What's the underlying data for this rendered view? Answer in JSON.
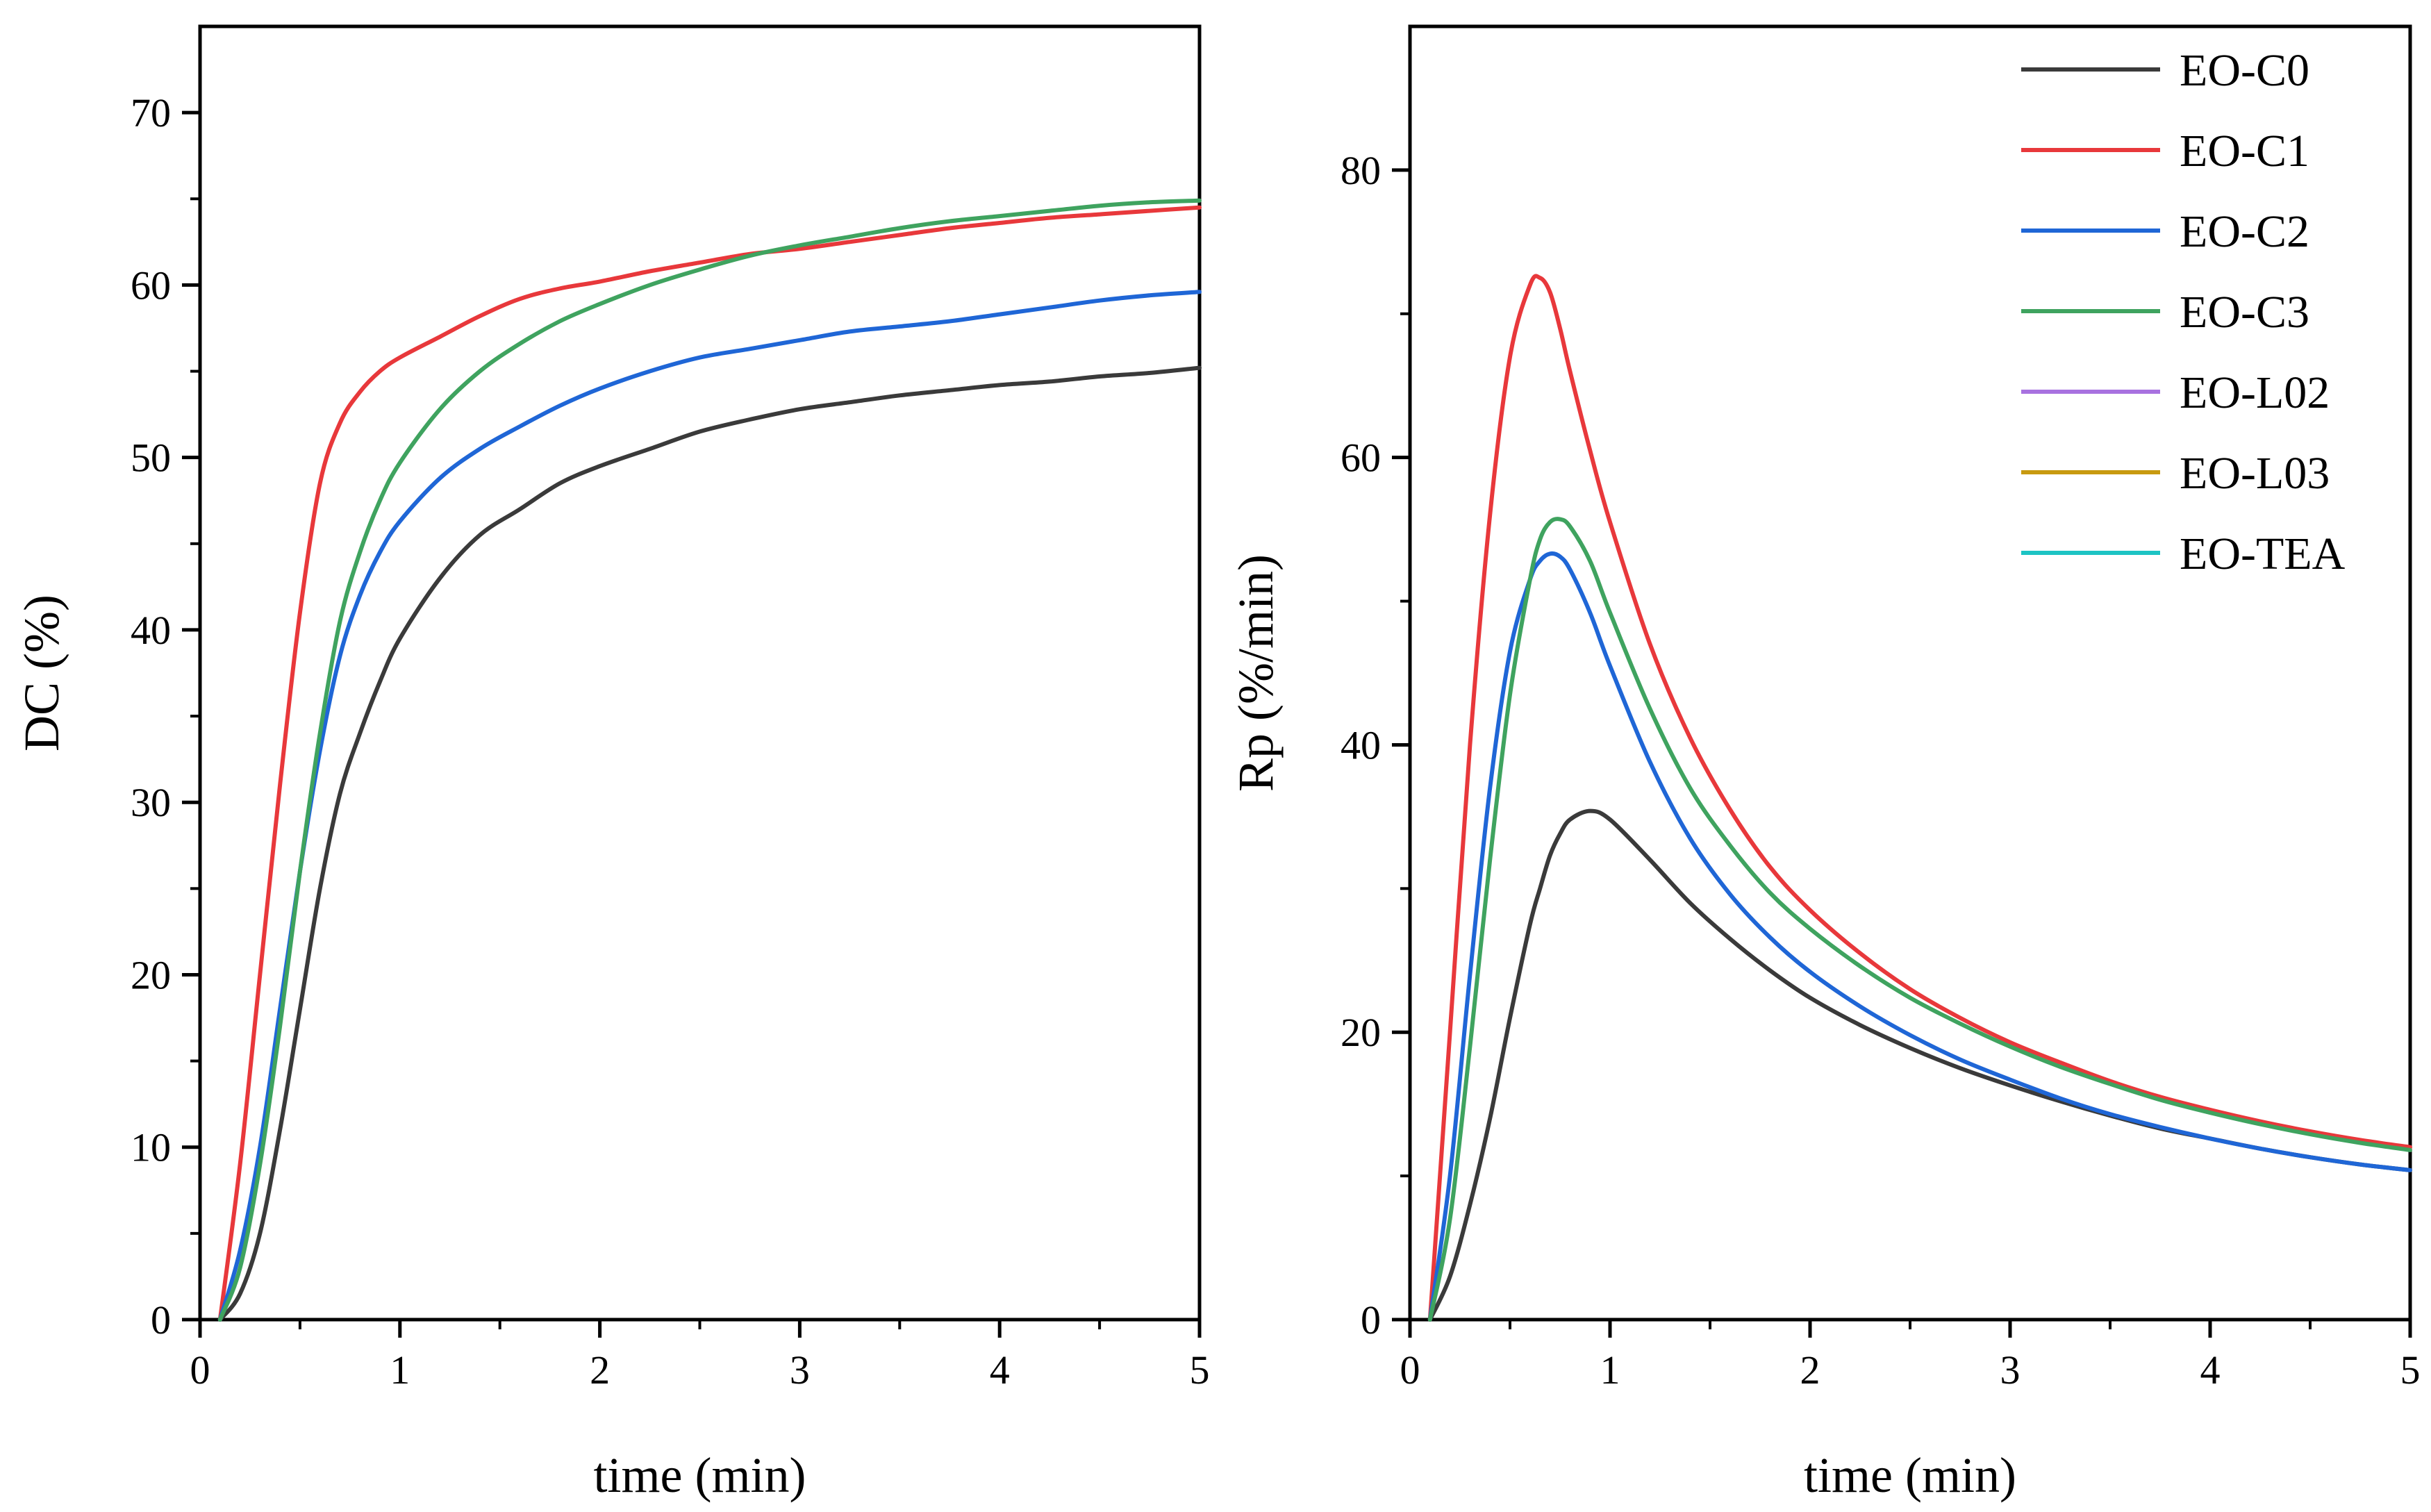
{
  "colors": {
    "EO-C0": "#3a3a3a",
    "EO-C1": "#e8383b",
    "EO-C2": "#1f66d6",
    "EO-C3": "#3fa35f",
    "EO-L02": "#a872e0",
    "EO-L03": "#c89a10",
    "EO-TEA": "#1dc4c4"
  },
  "chart_data": [
    {
      "type": "line",
      "panel": "left",
      "title": "",
      "xlabel": "time (min)",
      "ylabel": "DC (%)",
      "xlim": [
        0,
        5
      ],
      "ylim": [
        0,
        75
      ],
      "xticks": [
        "0",
        "1",
        "2",
        "3",
        "4",
        "5"
      ],
      "yticks": [
        "0",
        "10",
        "20",
        "30",
        "40",
        "50",
        "60",
        "70"
      ],
      "x": [
        0.1,
        0.2,
        0.3,
        0.4,
        0.5,
        0.6,
        0.7,
        0.8,
        0.9,
        1.0,
        1.2,
        1.4,
        1.6,
        1.8,
        2.0,
        2.25,
        2.5,
        2.75,
        3.0,
        3.25,
        3.5,
        3.75,
        4.0,
        4.25,
        4.5,
        4.75,
        5.0
      ],
      "series": [
        {
          "name": "EO-C0",
          "values": [
            0,
            1.5,
            5,
            11,
            18,
            25,
            30.5,
            34,
            37,
            39.5,
            43,
            45.5,
            47,
            48.5,
            49.5,
            50.5,
            51.5,
            52.2,
            52.8,
            53.2,
            53.6,
            53.9,
            54.2,
            54.4,
            54.7,
            54.9,
            55.2
          ]
        },
        {
          "name": "EO-C1",
          "values": [
            0,
            9,
            20,
            31,
            41,
            48.5,
            52,
            53.8,
            55,
            55.8,
            57,
            58.2,
            59.2,
            59.8,
            60.2,
            60.8,
            61.3,
            61.8,
            62.1,
            62.5,
            62.9,
            63.3,
            63.6,
            63.9,
            64.1,
            64.3,
            64.5
          ]
        },
        {
          "name": "EO-C2",
          "values": [
            0,
            4,
            10,
            18,
            26,
            33,
            38.5,
            42,
            44.5,
            46.3,
            48.8,
            50.5,
            51.8,
            53.0,
            54.0,
            55.0,
            55.8,
            56.3,
            56.8,
            57.3,
            57.6,
            57.9,
            58.3,
            58.7,
            59.1,
            59.4,
            59.6
          ]
        },
        {
          "name": "EO-C3",
          "values": [
            0,
            3,
            9,
            17,
            26,
            34,
            40.5,
            44.5,
            47.5,
            49.7,
            52.8,
            55.0,
            56.6,
            57.9,
            58.9,
            60.0,
            60.9,
            61.7,
            62.3,
            62.8,
            63.3,
            63.7,
            64.0,
            64.3,
            64.6,
            64.8,
            64.9
          ]
        }
      ]
    },
    {
      "type": "line",
      "panel": "right",
      "title": "",
      "xlabel": "time (min)",
      "ylabel": "Rp (%/min)",
      "xlim": [
        0,
        5
      ],
      "ylim": [
        0,
        90
      ],
      "xticks": [
        "0",
        "1",
        "2",
        "3",
        "4",
        "5"
      ],
      "yticks": [
        "0",
        "20",
        "40",
        "60",
        "80"
      ],
      "legend": {
        "position": "top-right",
        "entries": [
          "EO-C0",
          "EO-C1",
          "EO-C2",
          "EO-C3",
          "EO-L02",
          "EO-L03",
          "EO-TEA"
        ]
      },
      "x": [
        0.1,
        0.2,
        0.3,
        0.4,
        0.5,
        0.6,
        0.65,
        0.7,
        0.75,
        0.8,
        0.9,
        1.0,
        1.2,
        1.4,
        1.6,
        1.8,
        2.0,
        2.25,
        2.5,
        2.75,
        3.0,
        3.25,
        3.5,
        3.75,
        4.0,
        4.25,
        4.5,
        4.75,
        5.0
      ],
      "series": [
        {
          "name": "EO-C0",
          "values": [
            0,
            3,
            8,
            14,
            21,
            27.5,
            30,
            32.3,
            33.8,
            34.8,
            35.4,
            34.8,
            32.0,
            29.0,
            26.5,
            24.3,
            22.4,
            20.5,
            18.9,
            17.5,
            16.3,
            15.2,
            14.2,
            13.3,
            12.6,
            11.9,
            11.3,
            10.8,
            10.4
          ]
        },
        {
          "name": "EO-C1",
          "values": [
            0,
            20,
            40,
            56,
            67,
            72,
            72.5,
            71.5,
            69,
            66,
            60.5,
            55.5,
            47,
            40.5,
            35.5,
            31.5,
            28.5,
            25.5,
            23.0,
            21.0,
            19.3,
            17.9,
            16.6,
            15.5,
            14.6,
            13.8,
            13.1,
            12.5,
            12.0
          ]
        },
        {
          "name": "EO-C2",
          "values": [
            0,
            10,
            24,
            37,
            46.5,
            51.5,
            52.8,
            53.3,
            53.1,
            52.2,
            49.2,
            45.5,
            38.8,
            33.5,
            29.6,
            26.6,
            24.2,
            21.8,
            19.8,
            18.1,
            16.7,
            15.4,
            14.3,
            13.4,
            12.6,
            11.9,
            11.3,
            10.8,
            10.4
          ]
        },
        {
          "name": "EO-C3",
          "values": [
            0,
            7,
            19,
            32,
            43.5,
            51.5,
            54.3,
            55.5,
            55.7,
            55.2,
            52.8,
            49.2,
            42.5,
            37.0,
            33.0,
            29.7,
            27.2,
            24.6,
            22.4,
            20.6,
            19.0,
            17.6,
            16.4,
            15.3,
            14.4,
            13.6,
            12.9,
            12.3,
            11.8
          ]
        }
      ]
    }
  ]
}
